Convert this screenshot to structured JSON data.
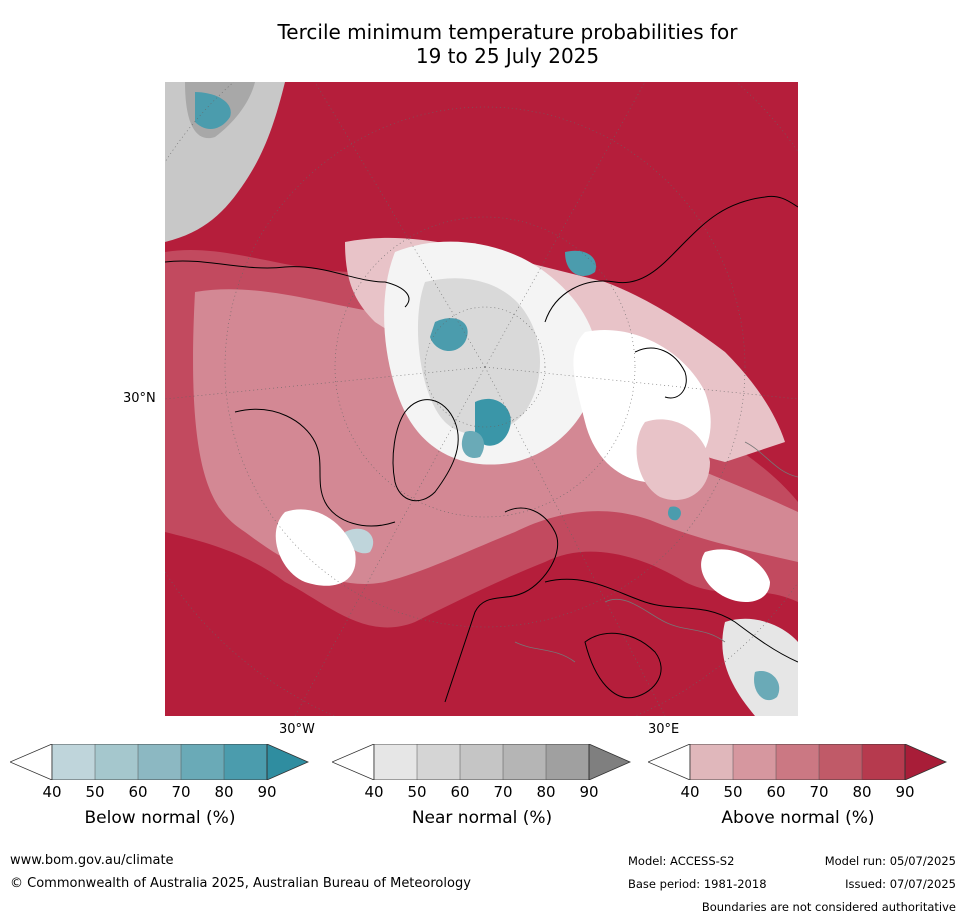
{
  "title": {
    "line1": "Tercile minimum temperature probabilities for",
    "line2": "19 to 25 July 2025"
  },
  "map": {
    "projection_labels": {
      "left_lat": "30°N",
      "bottom_left_lon": "30°W",
      "bottom_right_lon": "30°E"
    }
  },
  "colorbars": [
    {
      "label": "Below normal (%)",
      "ticks": [
        "40",
        "50",
        "60",
        "70",
        "80",
        "90"
      ],
      "colors": [
        "#bfd5db",
        "#a5c7cd",
        "#8cb8c2",
        "#6aaab7",
        "#4b9cad",
        "#2f8da0"
      ]
    },
    {
      "label": "Near normal (%)",
      "ticks": [
        "40",
        "50",
        "60",
        "70",
        "80",
        "90"
      ],
      "colors": [
        "#e6e6e6",
        "#d5d5d5",
        "#c5c5c5",
        "#b5b5b5",
        "#a0a0a0",
        "#7f7f7f"
      ]
    },
    {
      "label": "Above normal (%)",
      "ticks": [
        "40",
        "50",
        "60",
        "70",
        "80",
        "90"
      ],
      "colors": [
        "#e0b7bb",
        "#d6979f",
        "#cb7883",
        "#c05a68",
        "#b63a4e",
        "#a81d38"
      ]
    }
  ],
  "footer": {
    "url": "www.bom.gov.au/climate",
    "copyright": "© Commonwealth of Australia 2025, Australian Bureau of Meteorology",
    "model": "Model: ACCESS-S2",
    "base_period": "Base period: 1981-2018",
    "model_run": "Model run: 05/07/2025",
    "issued": "Issued: 07/07/2025",
    "disclaimer": "Boundaries are not considered authoritative"
  }
}
